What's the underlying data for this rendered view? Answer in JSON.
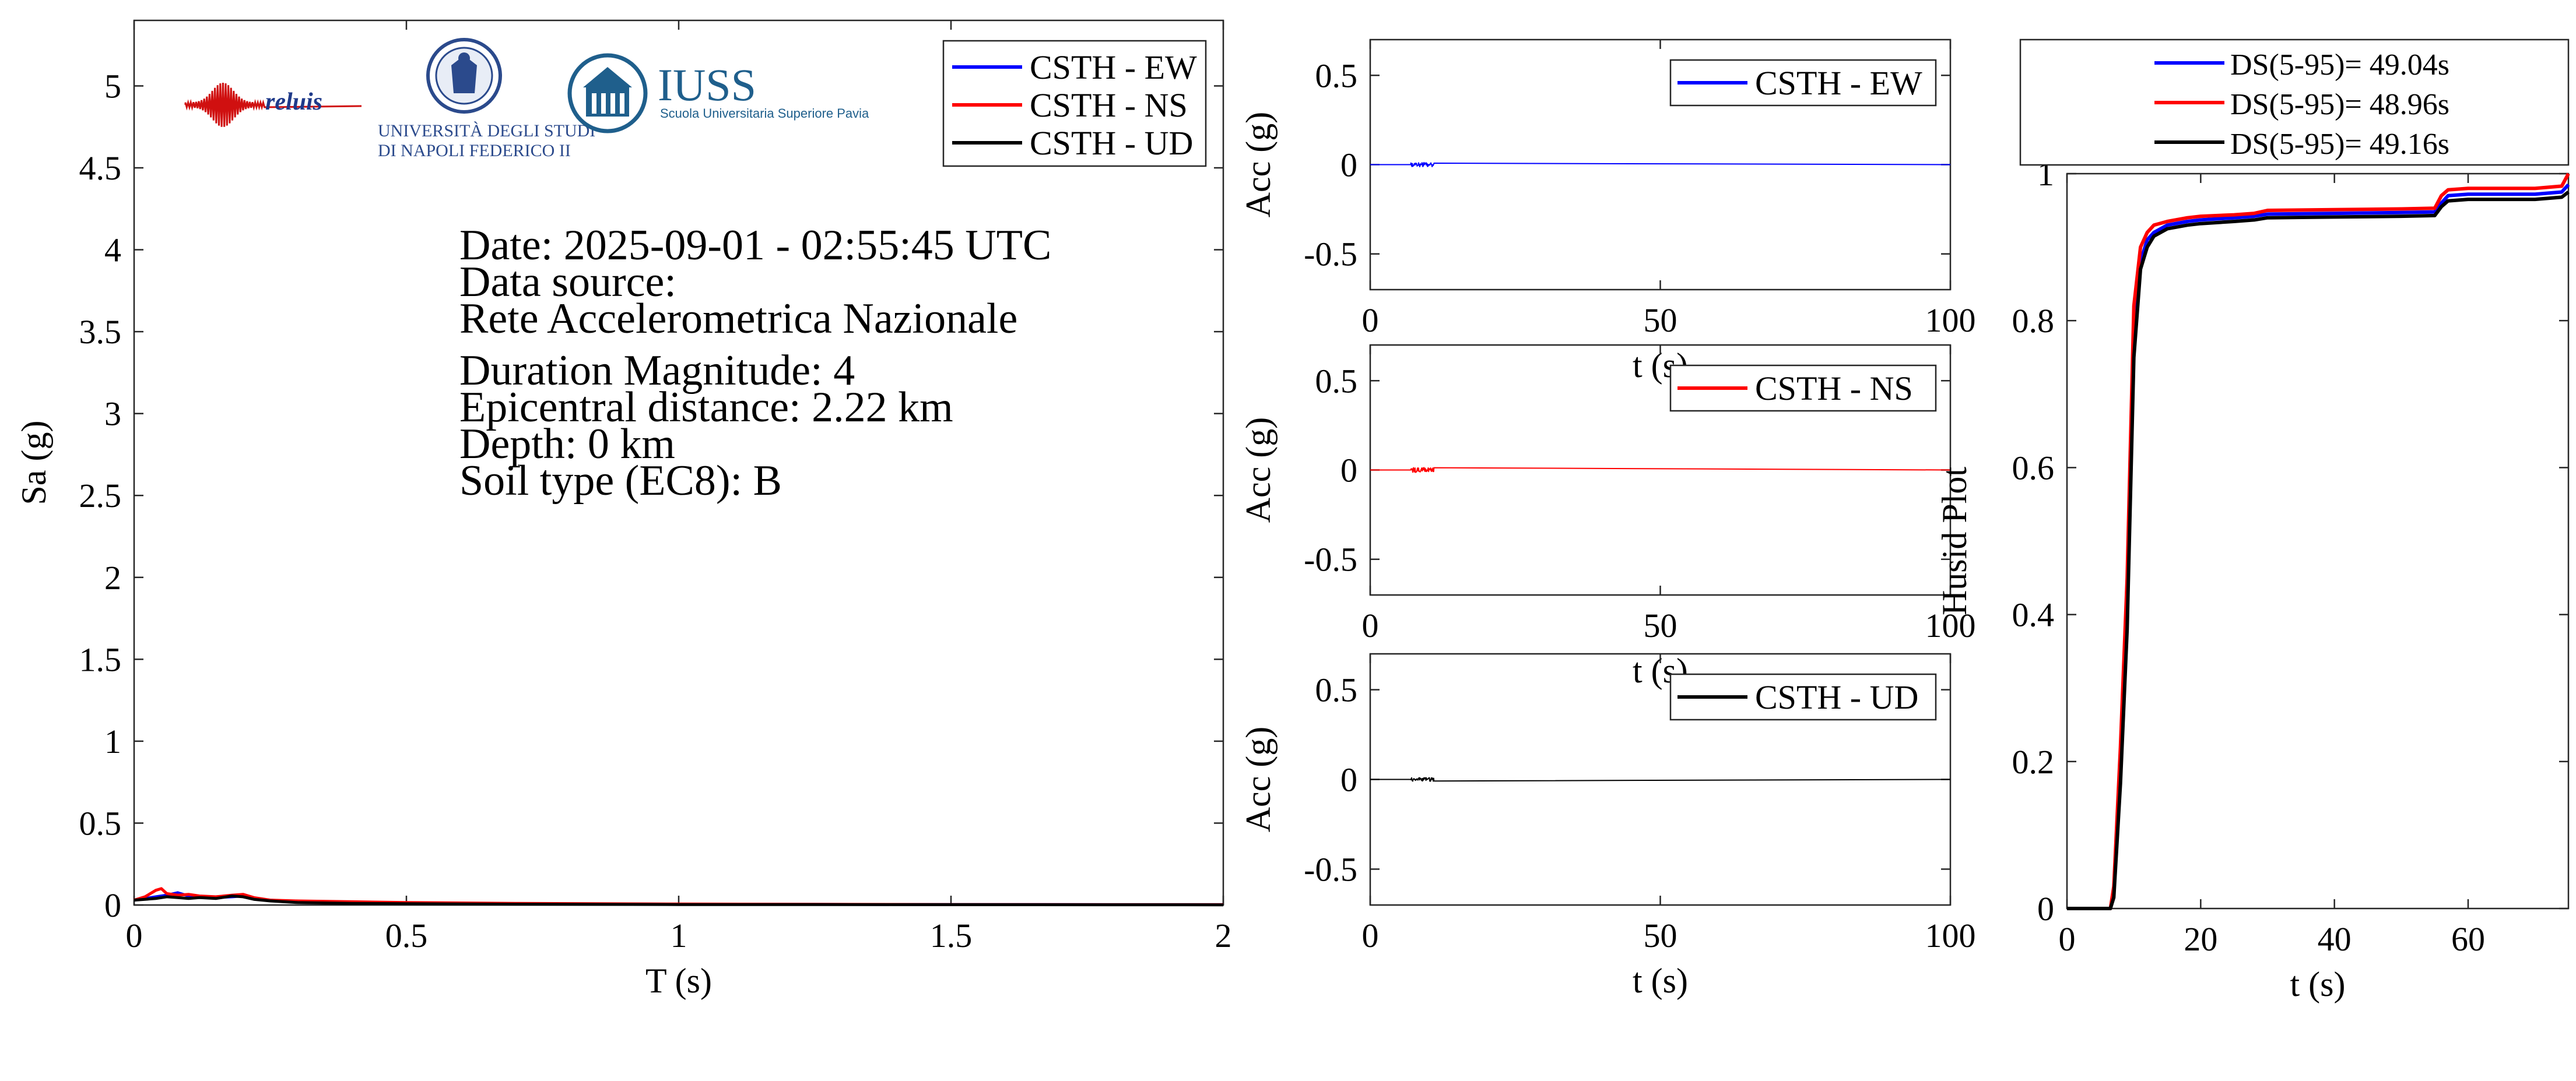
{
  "logos": {
    "reluis": "reluis",
    "unina_line1": "UNIVERSITÀ DEGLI STUDI",
    "unina_line2": "DI NAPOLI FEDERICO II",
    "iuss_name": "IUSS",
    "iuss_subtitle": "Scuola Universitaria Superiore Pavia"
  },
  "info": {
    "date": "Date: 2025-09-01 - 02:55:45 UTC",
    "source_label": "Data source:",
    "source_name": "Rete Accelerometrica Nazionale",
    "magnitude": "Duration Magnitude: 4",
    "distance": "Epicentral distance: 2.22 km",
    "depth": "Depth: 0 km",
    "soil": "Soil type (EC8): B"
  },
  "colors": {
    "EW": "#0000ff",
    "NS": "#ff0000",
    "UD": "#000000"
  },
  "chart_data": [
    {
      "id": "spectrum",
      "type": "line",
      "xlabel": "T (s)",
      "ylabel": "Sa (g)",
      "xlim": [
        0,
        2
      ],
      "ylim": [
        0,
        5.4
      ],
      "xticks": [
        0,
        0.5,
        1,
        1.5,
        2
      ],
      "yticks": [
        0,
        0.5,
        1,
        1.5,
        2,
        2.5,
        3,
        3.5,
        4,
        4.5,
        5
      ],
      "legend_position": "top-right",
      "series": [
        {
          "name": "CSTH - EW",
          "color": "#0000ff",
          "x": [
            0,
            0.02,
            0.04,
            0.06,
            0.08,
            0.1,
            0.12,
            0.15,
            0.18,
            0.2,
            0.22,
            0.25,
            0.3,
            0.4,
            0.5,
            0.7,
            1,
            1.5,
            2
          ],
          "y": [
            0.03,
            0.04,
            0.05,
            0.06,
            0.075,
            0.055,
            0.05,
            0.045,
            0.05,
            0.055,
            0.04,
            0.03,
            0.02,
            0.015,
            0.012,
            0.008,
            0.005,
            0.003,
            0.002
          ]
        },
        {
          "name": "CSTH - NS",
          "color": "#ff0000",
          "x": [
            0,
            0.02,
            0.04,
            0.05,
            0.06,
            0.08,
            0.1,
            0.12,
            0.15,
            0.18,
            0.2,
            0.22,
            0.25,
            0.3,
            0.4,
            0.5,
            0.7,
            1,
            1.5,
            2
          ],
          "y": [
            0.03,
            0.05,
            0.09,
            0.1,
            0.07,
            0.06,
            0.065,
            0.055,
            0.05,
            0.06,
            0.065,
            0.045,
            0.03,
            0.025,
            0.02,
            0.015,
            0.01,
            0.006,
            0.003,
            0.002
          ]
        },
        {
          "name": "CSTH - UD",
          "color": "#000000",
          "x": [
            0,
            0.02,
            0.04,
            0.06,
            0.08,
            0.1,
            0.12,
            0.15,
            0.18,
            0.2,
            0.22,
            0.25,
            0.3,
            0.4,
            0.5,
            0.7,
            1,
            1.5,
            2
          ],
          "y": [
            0.03,
            0.035,
            0.04,
            0.05,
            0.045,
            0.04,
            0.045,
            0.04,
            0.055,
            0.05,
            0.035,
            0.025,
            0.015,
            0.01,
            0.008,
            0.005,
            0.003,
            0.002,
            0.001
          ]
        }
      ]
    },
    {
      "id": "acc_ew",
      "type": "line",
      "xlabel": "t (s)",
      "ylabel": "Acc (g)",
      "xlim": [
        0,
        100
      ],
      "ylim": [
        -0.7,
        0.7
      ],
      "xticks": [
        0,
        50,
        100
      ],
      "yticks": [
        -0.5,
        0,
        0.5
      ],
      "legend_position": "top-right",
      "series": [
        {
          "name": "CSTH - EW",
          "color": "#0000ff",
          "burst_start": 7,
          "burst_end": 11,
          "peak": 0.012,
          "duration": 100
        }
      ]
    },
    {
      "id": "acc_ns",
      "type": "line",
      "xlabel": "t (s)",
      "ylabel": "Acc (g)",
      "xlim": [
        0,
        100
      ],
      "ylim": [
        -0.7,
        0.7
      ],
      "xticks": [
        0,
        50,
        100
      ],
      "yticks": [
        -0.5,
        0,
        0.5
      ],
      "legend_position": "top-right",
      "series": [
        {
          "name": "CSTH - NS",
          "color": "#ff0000",
          "burst_start": 7,
          "burst_end": 11,
          "peak": 0.014,
          "duration": 100
        }
      ]
    },
    {
      "id": "acc_ud",
      "type": "line",
      "xlabel": "t (s)",
      "ylabel": "Acc (g)",
      "xlim": [
        0,
        100
      ],
      "ylim": [
        -0.7,
        0.7
      ],
      "xticks": [
        0,
        50,
        100
      ],
      "yticks": [
        -0.5,
        0,
        0.5
      ],
      "legend_position": "top-right",
      "series": [
        {
          "name": "CSTH - UD",
          "color": "#000000",
          "burst_start": 7,
          "burst_end": 11,
          "peak": 0.01,
          "duration": 100
        }
      ]
    },
    {
      "id": "husid",
      "type": "line",
      "xlabel": "t (s)",
      "ylabel": "Husid Plot",
      "xlim": [
        0,
        75
      ],
      "ylim": [
        0,
        1
      ],
      "xticks": [
        0,
        20,
        40,
        60
      ],
      "yticks": [
        0,
        0.2,
        0.4,
        0.6,
        0.8,
        1
      ],
      "legend_position": "top",
      "series": [
        {
          "name": "DS(5-95)= 49.04s",
          "color": "#0000ff",
          "x": [
            0,
            6.5,
            7,
            8,
            9,
            10,
            11,
            12,
            13,
            15,
            18,
            20,
            25,
            28,
            30,
            40,
            50,
            55,
            56,
            57,
            60,
            70,
            74,
            75
          ],
          "y": [
            0,
            0,
            0.02,
            0.2,
            0.4,
            0.78,
            0.88,
            0.91,
            0.92,
            0.93,
            0.935,
            0.937,
            0.94,
            0.942,
            0.945,
            0.946,
            0.947,
            0.948,
            0.96,
            0.97,
            0.972,
            0.972,
            0.975,
            0.985
          ]
        },
        {
          "name": "DS(5-95)= 48.96s",
          "color": "#ff0000",
          "x": [
            0,
            6.5,
            7,
            8,
            9,
            10,
            11,
            12,
            13,
            15,
            18,
            20,
            25,
            28,
            30,
            40,
            50,
            55,
            56,
            57,
            60,
            70,
            74,
            75
          ],
          "y": [
            0,
            0,
            0.03,
            0.22,
            0.45,
            0.82,
            0.9,
            0.92,
            0.93,
            0.935,
            0.94,
            0.942,
            0.944,
            0.946,
            0.95,
            0.951,
            0.952,
            0.953,
            0.97,
            0.978,
            0.98,
            0.98,
            0.983,
            1
          ]
        },
        {
          "name": "DS(5-95)= 49.16s",
          "color": "#000000",
          "x": [
            0,
            6.5,
            7,
            8,
            9,
            10,
            11,
            12,
            13,
            15,
            18,
            20,
            25,
            28,
            30,
            40,
            50,
            55,
            56,
            57,
            60,
            70,
            74,
            75
          ],
          "y": [
            0,
            0,
            0.015,
            0.17,
            0.38,
            0.75,
            0.87,
            0.9,
            0.915,
            0.925,
            0.93,
            0.932,
            0.935,
            0.937,
            0.94,
            0.941,
            0.942,
            0.943,
            0.955,
            0.963,
            0.965,
            0.965,
            0.968,
            0.975
          ]
        }
      ]
    }
  ]
}
